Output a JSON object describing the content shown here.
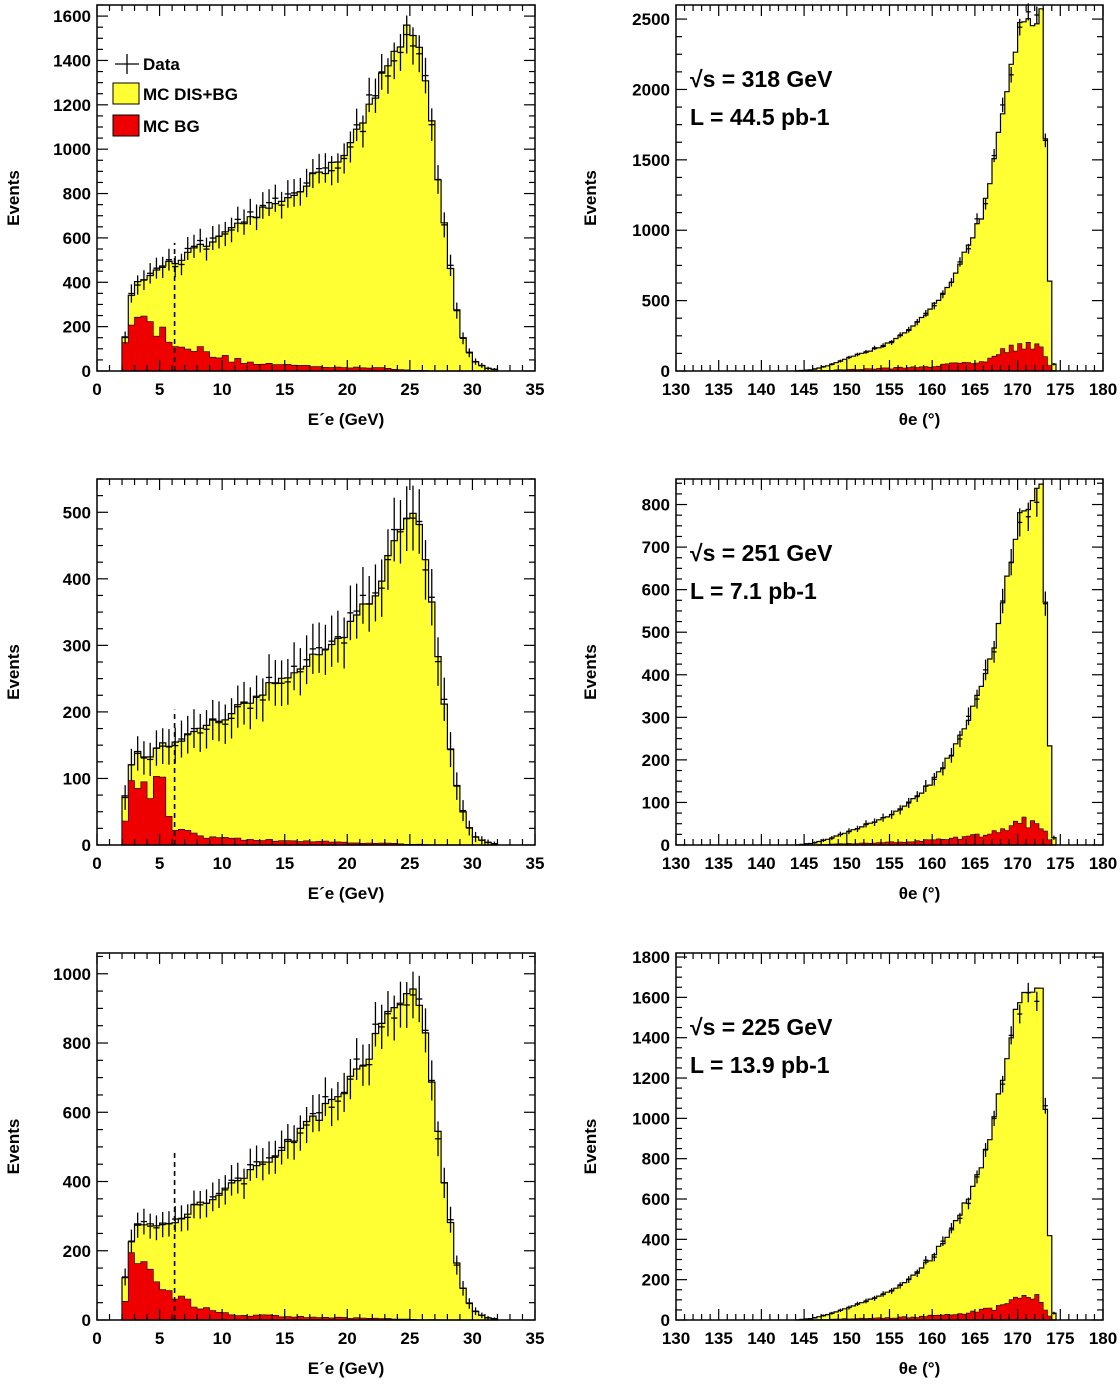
{
  "colors": {
    "mc_total": "#ffff33",
    "mc_bg": "#ee0000",
    "data": "#000000"
  },
  "legend": {
    "data": "Data",
    "mc_total": "MC DIS+BG",
    "mc_bg": "MC BG"
  },
  "chart_data": [
    {
      "type": "histogram",
      "panel": "energy-318",
      "xlabel": "E´e (GeV)",
      "ylabel": "Events",
      "xlim": [
        0,
        35
      ],
      "ylim": [
        0,
        1650
      ],
      "xticks": [
        0,
        5,
        10,
        15,
        20,
        25,
        30,
        35
      ],
      "yticks": [
        0,
        200,
        400,
        600,
        800,
        1000,
        1200,
        1400,
        1600
      ],
      "annotation": [],
      "legend": true,
      "cut_line_x": 6.2,
      "x_points": [
        2,
        3,
        4,
        5,
        6,
        8,
        10,
        12,
        14,
        16,
        18,
        20,
        22,
        23,
        24,
        25,
        26,
        27,
        28,
        29,
        30,
        31,
        32
      ],
      "mc_total": [
        70,
        420,
        400,
        480,
        480,
        550,
        600,
        680,
        740,
        820,
        900,
        1000,
        1200,
        1350,
        1450,
        1560,
        1450,
        1000,
        550,
        180,
        50,
        15,
        5
      ],
      "mc_bg": [
        30,
        350,
        200,
        180,
        150,
        95,
        60,
        40,
        30,
        25,
        20,
        18,
        15,
        12,
        8,
        4,
        2,
        1,
        0,
        0,
        0,
        0,
        0
      ]
    },
    {
      "type": "histogram",
      "panel": "theta-318",
      "xlabel": "θe (°)",
      "ylabel": "Events",
      "xlim": [
        130,
        180
      ],
      "ylim": [
        0,
        2600
      ],
      "xticks": [
        130,
        135,
        140,
        145,
        150,
        155,
        160,
        165,
        170,
        175,
        180
      ],
      "yticks": [
        0,
        500,
        1000,
        1500,
        2000,
        2500
      ],
      "annotation": [
        "√s = 318 GeV",
        "L = 44.5 pb-1"
      ],
      "legend": false,
      "x_points": [
        144,
        146,
        148,
        150,
        152,
        154,
        156,
        158,
        160,
        162,
        164,
        166,
        167,
        168,
        169,
        170,
        171,
        172,
        172.9,
        173.5,
        174,
        174.3
      ],
      "mc_total": [
        0,
        10,
        40,
        90,
        130,
        170,
        240,
        330,
        450,
        620,
        850,
        1150,
        1400,
        1750,
        2100,
        2400,
        2500,
        2530,
        2530,
        1000,
        300,
        0
      ],
      "mc_bg": [
        0,
        2,
        5,
        10,
        14,
        17,
        22,
        28,
        35,
        45,
        60,
        80,
        100,
        130,
        160,
        190,
        200,
        180,
        150,
        60,
        20,
        0
      ]
    },
    {
      "type": "histogram",
      "panel": "energy-251",
      "xlabel": "E´e (GeV)",
      "ylabel": "Events",
      "xlim": [
        0,
        35
      ],
      "ylim": [
        0,
        550
      ],
      "xticks": [
        0,
        5,
        10,
        15,
        20,
        25,
        30,
        35
      ],
      "yticks": [
        0,
        100,
        200,
        300,
        400,
        500
      ],
      "annotation": [],
      "legend": false,
      "cut_line_x": 6.2,
      "x_points": [
        2,
        3,
        4,
        5,
        6,
        8,
        10,
        12,
        14,
        16,
        18,
        20,
        22,
        23,
        24,
        25,
        26,
        27,
        28,
        29,
        30,
        31,
        32
      ],
      "mc_total": [
        50,
        140,
        130,
        150,
        150,
        175,
        190,
        215,
        240,
        265,
        295,
        325,
        370,
        410,
        460,
        495,
        460,
        320,
        170,
        60,
        15,
        5,
        1
      ],
      "mc_bg": [
        10,
        110,
        80,
        100,
        30,
        15,
        10,
        8,
        7,
        6,
        5,
        4,
        3,
        3,
        2,
        1,
        1,
        0,
        0,
        0,
        0,
        0,
        0
      ]
    },
    {
      "type": "histogram",
      "panel": "theta-251",
      "xlabel": "θe (°)",
      "ylabel": "Events",
      "xlim": [
        130,
        180
      ],
      "ylim": [
        0,
        860
      ],
      "xticks": [
        130,
        135,
        140,
        145,
        150,
        155,
        160,
        165,
        170,
        175,
        180
      ],
      "yticks": [
        0,
        100,
        200,
        300,
        400,
        500,
        600,
        700,
        800
      ],
      "annotation": [
        "√s = 251 GeV",
        "L = 7.1 pb-1"
      ],
      "legend": false,
      "x_points": [
        144,
        146,
        148,
        150,
        152,
        154,
        156,
        158,
        160,
        162,
        164,
        166,
        167,
        168,
        169,
        170,
        171,
        172,
        172.9,
        173.5,
        174,
        174.3
      ],
      "mc_total": [
        0,
        4,
        15,
        30,
        45,
        60,
        80,
        110,
        150,
        205,
        280,
        380,
        450,
        550,
        650,
        750,
        790,
        810,
        830,
        380,
        100,
        0
      ],
      "mc_bg": [
        0,
        0,
        2,
        3,
        4,
        5,
        7,
        9,
        11,
        14,
        18,
        24,
        28,
        35,
        40,
        48,
        55,
        50,
        45,
        20,
        5,
        0
      ]
    },
    {
      "type": "histogram",
      "panel": "energy-225",
      "xlabel": "E´e (GeV)",
      "ylabel": "Events",
      "xlim": [
        0,
        35
      ],
      "ylim": [
        0,
        1060
      ],
      "xticks": [
        0,
        5,
        10,
        15,
        20,
        25,
        30,
        35
      ],
      "yticks": [
        0,
        200,
        400,
        600,
        800,
        1000
      ],
      "annotation": [],
      "legend": false,
      "cut_line_x": 6.2,
      "x_points": [
        2,
        3,
        4,
        5,
        6,
        8,
        10,
        12,
        14,
        16,
        18,
        20,
        22,
        23,
        24,
        25,
        26,
        27,
        28,
        29,
        30,
        31,
        32
      ],
      "mc_total": [
        70,
        280,
        280,
        270,
        280,
        330,
        370,
        420,
        470,
        540,
        600,
        680,
        790,
        860,
        920,
        960,
        900,
        620,
        330,
        110,
        30,
        8,
        2
      ],
      "mc_bg": [
        20,
        220,
        170,
        120,
        70,
        40,
        20,
        15,
        12,
        10,
        8,
        6,
        5,
        4,
        3,
        2,
        1,
        1,
        0,
        0,
        0,
        0,
        0
      ]
    },
    {
      "type": "histogram",
      "panel": "theta-225",
      "xlabel": "θe (°)",
      "ylabel": "Events",
      "xlim": [
        130,
        180
      ],
      "ylim": [
        0,
        1820
      ],
      "xticks": [
        130,
        135,
        140,
        145,
        150,
        155,
        160,
        165,
        170,
        175,
        180
      ],
      "yticks": [
        0,
        200,
        400,
        600,
        800,
        1000,
        1200,
        1400,
        1600,
        1800
      ],
      "annotation": [
        "√s = 225 GeV",
        "L = 13.9 pb-1"
      ],
      "legend": false,
      "x_points": [
        144,
        146,
        148,
        150,
        152,
        154,
        156,
        158,
        160,
        162,
        164,
        166,
        167,
        168,
        169,
        170,
        171,
        172,
        172.9,
        173.5,
        174,
        174.3
      ],
      "mc_total": [
        0,
        8,
        30,
        60,
        90,
        120,
        165,
        230,
        310,
        430,
        590,
        800,
        960,
        1150,
        1380,
        1550,
        1610,
        1640,
        1600,
        650,
        200,
        0
      ],
      "mc_bg": [
        0,
        1,
        3,
        6,
        8,
        10,
        12,
        15,
        20,
        26,
        34,
        45,
        55,
        70,
        90,
        110,
        130,
        120,
        100,
        40,
        10,
        0
      ]
    }
  ]
}
